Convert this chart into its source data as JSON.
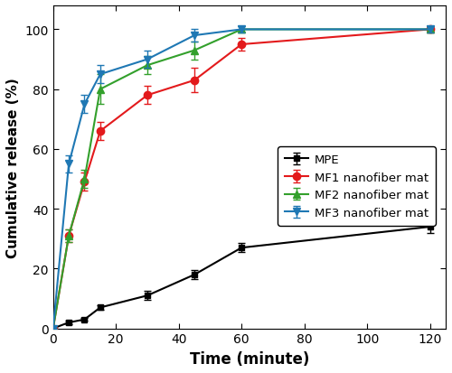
{
  "time": [
    0,
    5,
    10,
    15,
    30,
    45,
    60,
    120
  ],
  "MPE": [
    0,
    2,
    3,
    7,
    11,
    18,
    27,
    34
  ],
  "MPE_err": [
    0,
    0.5,
    0.5,
    0.8,
    1.5,
    1.5,
    1.5,
    2.0
  ],
  "MF1": [
    0,
    31,
    49,
    66,
    78,
    83,
    95,
    100
  ],
  "MF1_err": [
    0,
    2,
    3,
    3,
    3,
    4,
    2,
    1
  ],
  "MF2": [
    0,
    31,
    50,
    80,
    88,
    93,
    100,
    100
  ],
  "MF2_err": [
    0,
    2,
    3,
    5,
    3,
    3,
    1,
    1
  ],
  "MF3": [
    0,
    55,
    75,
    85,
    90,
    98,
    100,
    100
  ],
  "MF3_err": [
    0,
    3,
    3,
    3,
    3,
    2,
    1,
    1
  ],
  "MPE_color": "#000000",
  "MF1_color": "#e31a1c",
  "MF2_color": "#33a02c",
  "MF3_color": "#1f78b4",
  "xlabel": "Time (minute)",
  "ylabel": "Cumulative release (%)",
  "xlim": [
    0,
    125
  ],
  "ylim": [
    0,
    108
  ],
  "xticks": [
    0,
    20,
    40,
    60,
    80,
    100,
    120
  ],
  "yticks": [
    0,
    20,
    40,
    60,
    80,
    100
  ],
  "legend_labels": [
    "MPE",
    "MF1 nanofiber mat",
    "MF2 nanofiber mat",
    "MF3 nanofiber mat"
  ],
  "figsize": [
    5.0,
    4.14
  ],
  "dpi": 100
}
